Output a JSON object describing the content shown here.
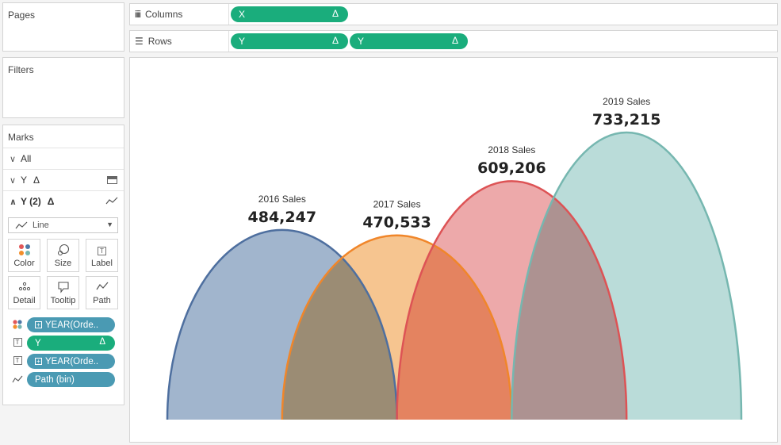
{
  "pages": {
    "title": "Pages"
  },
  "filters": {
    "title": "Filters"
  },
  "columns_shelf": {
    "label": "Columns",
    "pills": [
      {
        "text": "X",
        "delta": "Δ"
      }
    ]
  },
  "rows_shelf": {
    "label": "Rows",
    "pills": [
      {
        "text": "Y",
        "delta": "Δ"
      },
      {
        "text": "Y",
        "delta": "Δ"
      }
    ]
  },
  "marks": {
    "title": "Marks",
    "all_label": "All",
    "y_label": "Y",
    "y_delta": "Δ",
    "y2_label": "Y (2)",
    "y2_delta": "Δ",
    "mark_type": "Line",
    "buttons": {
      "color": "Color",
      "size": "Size",
      "label": "Label",
      "detail": "Detail",
      "tooltip": "Tooltip",
      "path": "Path"
    },
    "fields": [
      {
        "text": "YEAR(Orde..",
        "role": "color",
        "color": "#4a9ab3"
      },
      {
        "text": "Y",
        "delta": "Δ",
        "role": "label",
        "color": "#1aad7c"
      },
      {
        "text": "YEAR(Orde..",
        "role": "label",
        "color": "#4a9ab3"
      },
      {
        "text": "Path (bin)",
        "role": "path",
        "color": "#4a9ab3"
      }
    ]
  },
  "chart_data": {
    "type": "area",
    "series": [
      {
        "name": "2016 Sales",
        "value": "484,247",
        "peak": 484247,
        "x_start": 0,
        "x_end": 2,
        "stroke": "#4e6f9f",
        "fill": "#a1b5cd"
      },
      {
        "name": "2017 Sales",
        "value": "470,533",
        "peak": 470533,
        "x_start": 1,
        "x_end": 3,
        "stroke": "#f0862a",
        "fill": "#f6c590"
      },
      {
        "name": "2018 Sales",
        "value": "609,206",
        "peak": 609206,
        "x_start": 2,
        "x_end": 4,
        "stroke": "#dd5355",
        "fill": "#eda9aa"
      },
      {
        "name": "2019 Sales",
        "value": "733,215",
        "peak": 733215,
        "x_start": 3,
        "x_end": 5,
        "stroke": "#76b7b0",
        "fill": "#badcd9"
      }
    ],
    "ylim": [
      0,
      733215
    ],
    "xlim": [
      0,
      5
    ],
    "grid": false
  }
}
